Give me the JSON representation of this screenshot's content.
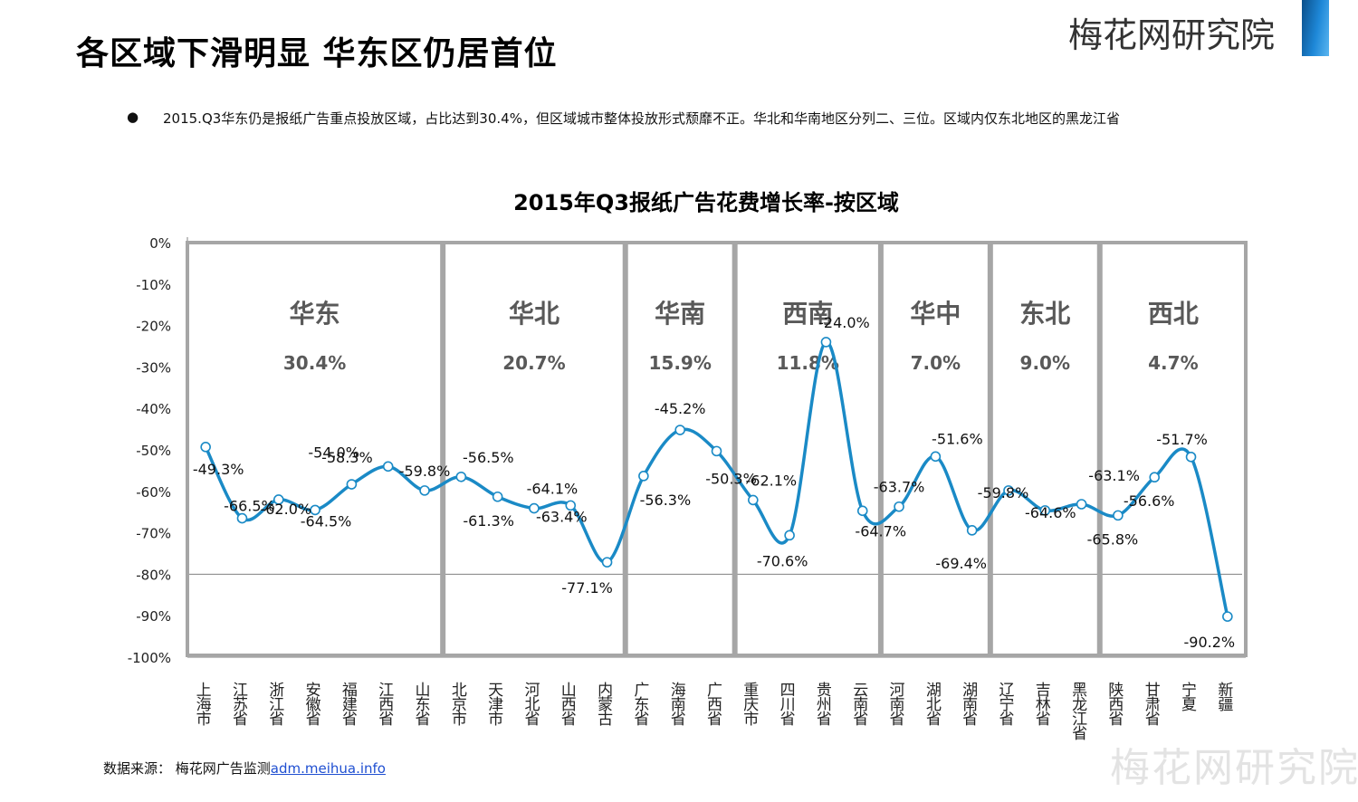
{
  "header": {
    "title": "各区域下滑明显  华东区仍居首位",
    "brand": "梅花网研究院"
  },
  "bullet": {
    "symbol": "●",
    "text": "2015.Q3华东仍是报纸广告重点投放区域，占比达到30.4%，但区域城市整体投放形式颓靡不正。华北和华南地区分列二、三位。区域内仅东北地区的黑龙江省"
  },
  "source": {
    "prefix": "数据来源：  梅花网广告监测",
    "link": "adm.meihua.info"
  },
  "watermark": "梅花网研究院",
  "colors": {
    "line": "#1a8ac6",
    "frame": "#a6a6a6",
    "region_text": "#595959"
  },
  "chart_data": {
    "type": "line",
    "title": "2015年Q3报纸广告花费增长率-按区域",
    "ylim": [
      -100,
      0
    ],
    "ytick_labels": [
      "0%",
      "-10%",
      "-20%",
      "-30%",
      "-40%",
      "-50%",
      "-60%",
      "-70%",
      "-80%",
      "-90%",
      "-100%"
    ],
    "categories": [
      "上海市",
      "江苏省",
      "浙江省",
      "安徽省",
      "福建省",
      "江西省",
      "山东省",
      "北京市",
      "天津市",
      "河北省",
      "山西省",
      "内蒙古",
      "广东省",
      "海南省",
      "广西省",
      "重庆市",
      "四川省",
      "贵州省",
      "云南省",
      "河南省",
      "湖北省",
      "湖南省",
      "辽宁省",
      "吉林省",
      "黑龙江省",
      "陕西省",
      "甘肃省",
      "宁夏",
      "新疆"
    ],
    "values": [
      -49.3,
      -66.5,
      -62.0,
      -64.5,
      -58.3,
      -54.0,
      -59.8,
      -56.5,
      -61.3,
      -64.1,
      -63.4,
      -77.1,
      -56.3,
      -45.2,
      -50.3,
      -62.1,
      -70.6,
      -24.0,
      -64.7,
      -63.7,
      -51.6,
      -69.4,
      -59.8,
      -64.6,
      -63.1,
      -65.8,
      -56.6,
      -51.7,
      -90.2
    ],
    "data_labels": [
      "-49.3%",
      "-66.5%",
      "-62.0%",
      "-64.5%",
      "-58.3%",
      "-54.0%",
      "-59.8%",
      "-56.5%",
      "-61.3%",
      "-64.1%",
      "-63.4%",
      "-77.1%",
      "-56.3%",
      "-45.2%",
      "-50.3%",
      "-62.1%",
      "-70.6%",
      "-24.0%",
      "-64.7%",
      "-63.7%",
      "-51.6%",
      "-69.4%",
      "-59.8%",
      "-64.6%",
      "-63.1%",
      "-65.8%",
      "-56.6%",
      "-51.7%",
      "-90.2%"
    ],
    "regions": [
      {
        "name": "华东",
        "share": "30.4%",
        "categories": [
          "上海市",
          "江苏省",
          "浙江省",
          "安徽省",
          "福建省",
          "江西省",
          "山东省"
        ]
      },
      {
        "name": "华北",
        "share": "20.7%",
        "categories": [
          "北京市",
          "天津市",
          "河北省",
          "山西省",
          "内蒙古"
        ]
      },
      {
        "name": "华南",
        "share": "15.9%",
        "categories": [
          "广东省",
          "海南省",
          "广西省"
        ]
      },
      {
        "name": "西南",
        "share": "11.8%",
        "categories": [
          "重庆市",
          "四川省",
          "贵州省",
          "云南省"
        ]
      },
      {
        "name": "华中",
        "share": "7.0%",
        "categories": [
          "河南省",
          "湖北省",
          "湖南省"
        ]
      },
      {
        "name": "东北",
        "share": "9.0%",
        "categories": [
          "辽宁省",
          "吉林省",
          "黑龙江省"
        ]
      },
      {
        "name": "西北",
        "share": "4.7%",
        "categories": [
          "陕西省",
          "甘肃省",
          "宁夏",
          "新疆"
        ]
      }
    ],
    "reference_line": -80
  }
}
